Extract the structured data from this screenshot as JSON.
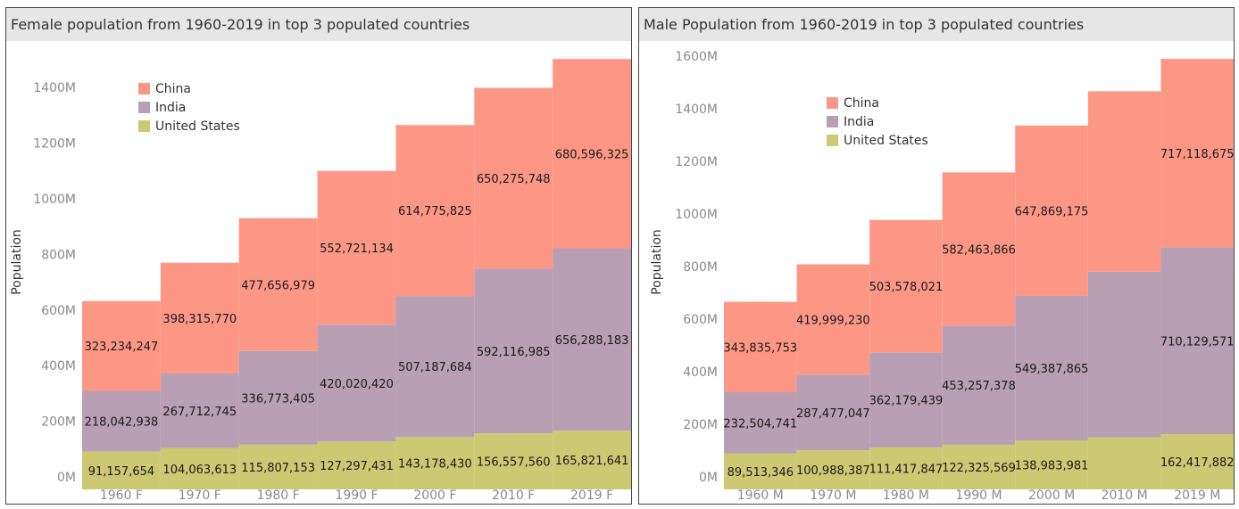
{
  "colors": {
    "China": "#fc9785",
    "India": "#b89fb4",
    "United States": "#cdc973"
  },
  "chart_data": [
    {
      "type": "bar",
      "stacked": true,
      "title": "Female population from 1960-2019 in top 3 populated countries",
      "ylabel": "Population",
      "xlabel": "",
      "categories": [
        "1960 F",
        "1970 F",
        "1980 F",
        "1990 F",
        "2000 F",
        "2010 F",
        "2019 F"
      ],
      "ylim": [
        0,
        1500000000
      ],
      "yticks": [
        0,
        200000000,
        400000000,
        600000000,
        800000000,
        1000000000,
        1200000000,
        1400000000
      ],
      "ytick_labels": [
        "0M",
        "200M",
        "400M",
        "600M",
        "800M",
        "1000M",
        "1200M",
        "1400M"
      ],
      "legend_position": "top-left",
      "series": [
        {
          "name": "United States",
          "values": [
            91157654,
            104063613,
            115807153,
            127297431,
            143178430,
            156557560,
            165821641
          ],
          "labels": [
            "91,157,654",
            "104,063,613",
            "115,807,153",
            "127,297,431",
            "143,178,430",
            "156,557,560",
            "165,821,641"
          ]
        },
        {
          "name": "India",
          "values": [
            218042938,
            267712745,
            336773405,
            420020420,
            507187684,
            592116985,
            656288183
          ],
          "labels": [
            "218,042,938",
            "267,712,745",
            "336,773,405",
            "420,020,420",
            "507,187,684",
            "592,116,985",
            "656,288,183"
          ]
        },
        {
          "name": "China",
          "values": [
            323234247,
            398315770,
            477656979,
            552721134,
            614775825,
            650275748,
            680596325
          ],
          "labels": [
            "323,234,247",
            "398,315,770",
            "477,656,979",
            "552,721,134",
            "614,775,825",
            "650,275,748",
            "680,596,325"
          ]
        }
      ]
    },
    {
      "type": "bar",
      "stacked": true,
      "title": "Male Population from 1960-2019 in top 3 populated countries",
      "ylabel": "Population",
      "xlabel": "",
      "categories": [
        "1960 M",
        "1970 M",
        "1980 M",
        "1990 M",
        "2000 M",
        "2010 M",
        "2019 M"
      ],
      "ylim": [
        0,
        1600000000
      ],
      "yticks": [
        0,
        200000000,
        400000000,
        600000000,
        800000000,
        1000000000,
        1200000000,
        1400000000,
        1600000000
      ],
      "ytick_labels": [
        "0M",
        "200M",
        "400M",
        "600M",
        "800M",
        "1000M",
        "1200M",
        "1400M",
        "1600M"
      ],
      "legend_position": "top-left",
      "series": [
        {
          "name": "United States",
          "values": [
            89513346,
            100988387,
            111417847,
            122325569,
            138983981,
            150600000,
            162417882
          ],
          "labels": [
            "89,513,346",
            "100,988,387",
            "111,417,847",
            "122,325,569",
            "138,983,981",
            "",
            "162,417,882"
          ]
        },
        {
          "name": "India",
          "values": [
            232504741,
            287477047,
            362179439,
            453257378,
            549387865,
            630000000,
            710129571
          ],
          "labels": [
            "232,504,741",
            "287,477,047",
            "362,179,439",
            "453,257,378",
            "549,387,865",
            "",
            "710,129,571"
          ]
        },
        {
          "name": "China",
          "values": [
            343835753,
            419999230,
            503578021,
            582463866,
            647869175,
            686000000,
            717118675
          ],
          "labels": [
            "343,835,753",
            "419,999,230",
            "503,578,021",
            "582,463,866",
            "647,869,175",
            "",
            "717,118,675"
          ]
        }
      ]
    }
  ]
}
